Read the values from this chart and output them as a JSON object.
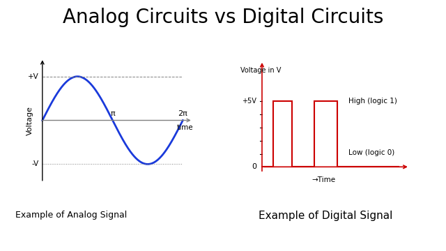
{
  "title": "Analog Circuits vs Digital Circuits",
  "title_fontsize": 20,
  "bg_color": "#ffffff",
  "analog_label": "Example of Analog Signal",
  "digital_label": "Example of Digital Signal",
  "analog_ylabel": "Voltage",
  "analog_xlabel": "time",
  "analog_color": "#1a3adb",
  "digital_color": "#cc0000",
  "plus_v": "+V",
  "minus_v": "-V",
  "pi_label": "π",
  "two_pi_label": "2π",
  "digital_ylabel": "Voltage in V",
  "digital_xlabel": "→Time",
  "plus5v": "+5V",
  "zero": "0",
  "high_label": "High (logic 1)",
  "low_label": "Low (logic 0)"
}
